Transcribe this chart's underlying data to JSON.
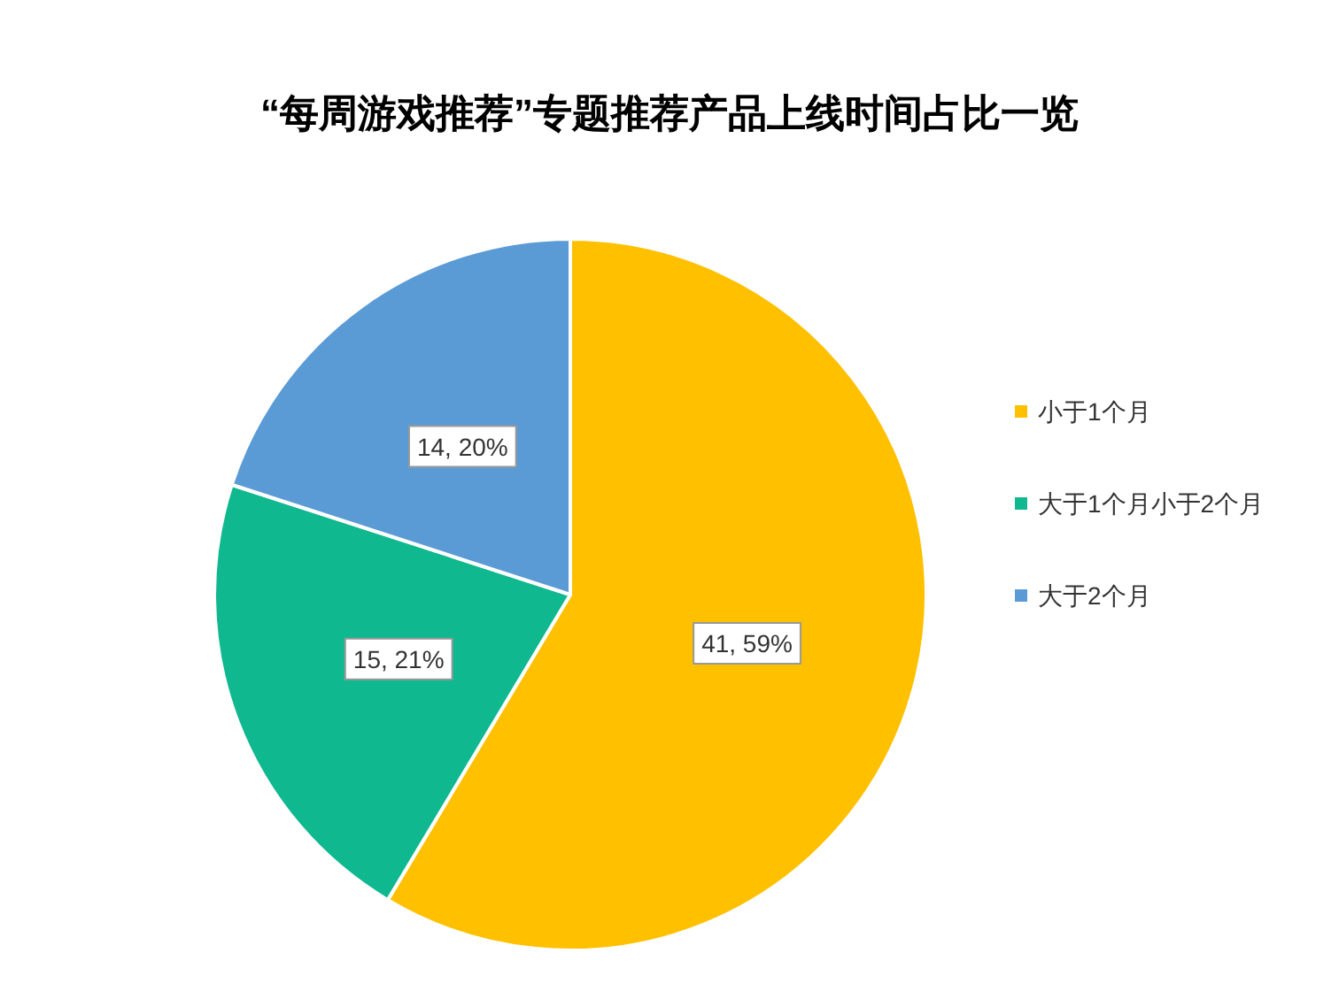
{
  "chart_data": {
    "type": "pie",
    "title": "“每周游戏推荐”专题推荐产品上线时间占比一览",
    "categories": [
      "小于1个月",
      "大于1个月小于2个月",
      "大于2个月"
    ],
    "values": [
      41,
      15,
      14
    ],
    "colors": [
      "#ffc000",
      "#10b88f",
      "#5b9bd5"
    ],
    "value_labels": [
      "41, 59%",
      "15, 21%",
      "14, 20%"
    ],
    "legend": "right"
  }
}
